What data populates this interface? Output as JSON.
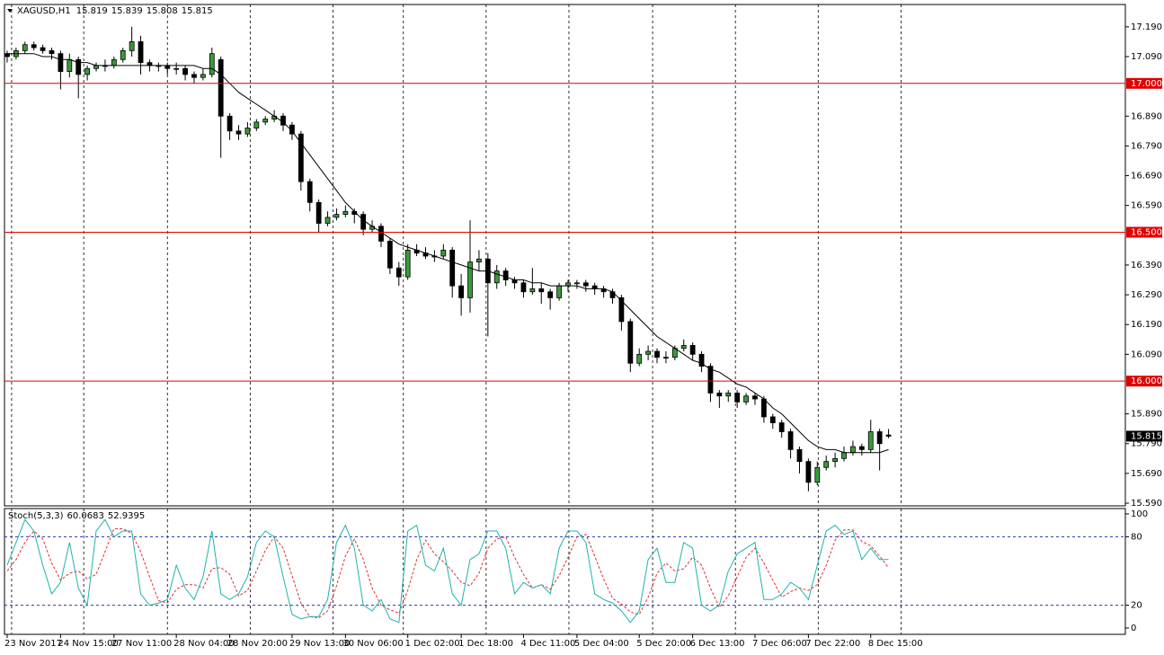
{
  "chart_data": {
    "type": "candlestick",
    "symbol": "XAGUSD,H1",
    "up_color": "#3a9a3a",
    "down_color": "#000000",
    "ma_color": "#000000",
    "level_color": "#e00000",
    "ylim": [
      15.581,
      17.265
    ],
    "yticks": [
      {
        "value": 17.19,
        "label": "17.190"
      },
      {
        "value": 17.09,
        "label": "17.090"
      },
      {
        "value": 16.89,
        "label": "16.890"
      },
      {
        "value": 16.79,
        "label": "16.790"
      },
      {
        "value": 16.69,
        "label": "16.690"
      },
      {
        "value": 16.59,
        "label": "16.590"
      },
      {
        "value": 16.39,
        "label": "16.390"
      },
      {
        "value": 16.29,
        "label": "16.290"
      },
      {
        "value": 16.19,
        "label": "16.190"
      },
      {
        "value": 16.09,
        "label": "16.090"
      },
      {
        "value": 15.89,
        "label": "15.890"
      },
      {
        "value": 15.79,
        "label": "15.790"
      },
      {
        "value": 15.69,
        "label": "15.690"
      },
      {
        "value": 15.59,
        "label": "15.590"
      }
    ],
    "levels": [
      {
        "value": 17,
        "label": "17.000"
      },
      {
        "value": 16.5,
        "label": "16.500"
      },
      {
        "value": 16,
        "label": "16.000"
      }
    ],
    "xlim": [
      -0.3,
      125.6
    ],
    "xticks": [
      {
        "value": 0,
        "label": "23 Nov 2017"
      },
      {
        "value": 6,
        "label": "24 Nov 15:00"
      },
      {
        "value": 12,
        "label": "27 Nov 11:00"
      },
      {
        "value": 19,
        "label": "28 Nov 04:00"
      },
      {
        "value": 25,
        "label": "28 Nov 20:00"
      },
      {
        "value": 32,
        "label": "29 Nov 13:00"
      },
      {
        "value": 38,
        "label": "30 Nov 06:00"
      },
      {
        "value": 45,
        "label": "1 Dec 02:00"
      },
      {
        "value": 51,
        "label": "1 Dec 18:00"
      },
      {
        "value": 58,
        "label": "4 Dec 11:00"
      },
      {
        "value": 64,
        "label": "5 Dec 04:00"
      },
      {
        "value": 71,
        "label": "5 Dec 20:00"
      },
      {
        "value": 77,
        "label": "6 Dec 13:00"
      },
      {
        "value": 84,
        "label": "7 Dec 06:00"
      },
      {
        "value": 90,
        "label": "7 Dec 22:00"
      },
      {
        "value": 97,
        "label": "8 Dec 15:00"
      }
    ],
    "grid_x": [
      0.5,
      8.6,
      18,
      27.3,
      36.6,
      44.5,
      53.8,
      63.1,
      72.5,
      81.8,
      91.1,
      100.4
    ],
    "ohlc": [
      [
        17.1,
        17.11,
        17.07,
        17.09
      ],
      [
        17.09,
        17.12,
        17.08,
        17.11
      ],
      [
        17.11,
        17.14,
        17.1,
        17.13
      ],
      [
        17.13,
        17.14,
        17.11,
        17.12
      ],
      [
        17.12,
        17.13,
        17.1,
        17.11
      ],
      [
        17.11,
        17.12,
        17.08,
        17.1
      ],
      [
        17.1,
        17.11,
        16.98,
        17.04
      ],
      [
        17.04,
        17.1,
        17.02,
        17.08
      ],
      [
        17.08,
        17.09,
        16.95,
        17.03
      ],
      [
        17.03,
        17.06,
        17.01,
        17.05
      ],
      [
        17.05,
        17.07,
        17.04,
        17.06
      ],
      [
        17.06,
        17.08,
        17.04,
        17.06
      ],
      [
        17.06,
        17.09,
        17.05,
        17.08
      ],
      [
        17.08,
        17.12,
        17.07,
        17.11
      ],
      [
        17.11,
        17.19,
        17.09,
        17.14
      ],
      [
        17.14,
        17.16,
        17.03,
        17.07
      ],
      [
        17.07,
        17.08,
        17.04,
        17.06
      ],
      [
        17.06,
        17.07,
        17.04,
        17.06
      ],
      [
        17.06,
        17.07,
        17.03,
        17.05
      ],
      [
        17.05,
        17.07,
        17.03,
        17.05
      ],
      [
        17.05,
        17.06,
        17.01,
        17.03
      ],
      [
        17.03,
        17.04,
        17.0,
        17.02
      ],
      [
        17.02,
        17.05,
        17.01,
        17.03
      ],
      [
        17.03,
        17.12,
        17.02,
        17.1
      ],
      [
        17.08,
        17.09,
        16.75,
        16.89
      ],
      [
        16.89,
        16.9,
        16.81,
        16.84
      ],
      [
        16.84,
        16.86,
        16.81,
        16.83
      ],
      [
        16.83,
        16.87,
        16.82,
        16.85
      ],
      [
        16.85,
        16.88,
        16.84,
        16.87
      ],
      [
        16.87,
        16.89,
        16.86,
        16.88
      ],
      [
        16.88,
        16.91,
        16.87,
        16.89
      ],
      [
        16.89,
        16.9,
        16.84,
        16.86
      ],
      [
        16.86,
        16.87,
        16.81,
        16.83
      ],
      [
        16.83,
        16.84,
        16.64,
        16.67
      ],
      [
        16.67,
        16.68,
        16.57,
        16.6
      ],
      [
        16.6,
        16.61,
        16.5,
        16.53
      ],
      [
        16.53,
        16.57,
        16.52,
        16.55
      ],
      [
        16.55,
        16.58,
        16.54,
        16.56
      ],
      [
        16.56,
        16.59,
        16.55,
        16.57
      ],
      [
        16.57,
        16.58,
        16.53,
        16.56
      ],
      [
        16.56,
        16.57,
        16.49,
        16.51
      ],
      [
        16.51,
        16.54,
        16.5,
        16.52
      ],
      [
        16.52,
        16.53,
        16.45,
        16.47
      ],
      [
        16.47,
        16.48,
        16.36,
        16.38
      ],
      [
        16.38,
        16.4,
        16.32,
        16.35
      ],
      [
        16.35,
        16.46,
        16.34,
        16.44
      ],
      [
        16.44,
        16.46,
        16.42,
        16.43
      ],
      [
        16.43,
        16.45,
        16.41,
        16.42
      ],
      [
        16.42,
        16.44,
        16.4,
        16.42
      ],
      [
        16.42,
        16.46,
        16.41,
        16.44
      ],
      [
        16.44,
        16.45,
        16.28,
        16.32
      ],
      [
        16.32,
        16.36,
        16.22,
        16.28
      ],
      [
        16.28,
        16.54,
        16.23,
        16.4
      ],
      [
        16.4,
        16.44,
        16.37,
        16.41
      ],
      [
        16.41,
        16.43,
        16.15,
        16.33
      ],
      [
        16.33,
        16.39,
        16.31,
        16.37
      ],
      [
        16.37,
        16.38,
        16.32,
        16.34
      ],
      [
        16.34,
        16.35,
        16.31,
        16.33
      ],
      [
        16.33,
        16.34,
        16.28,
        16.3
      ],
      [
        16.3,
        16.38,
        16.29,
        16.31
      ],
      [
        16.31,
        16.33,
        16.26,
        16.3
      ],
      [
        16.3,
        16.31,
        16.24,
        16.28
      ],
      [
        16.28,
        16.33,
        16.27,
        16.32
      ],
      [
        16.32,
        16.34,
        16.3,
        16.33
      ],
      [
        16.33,
        16.34,
        16.31,
        16.33
      ],
      [
        16.33,
        16.34,
        16.3,
        16.32
      ],
      [
        16.32,
        16.33,
        16.29,
        16.31
      ],
      [
        16.31,
        16.32,
        16.28,
        16.3
      ],
      [
        16.3,
        16.31,
        16.26,
        16.28
      ],
      [
        16.28,
        16.29,
        16.17,
        16.2
      ],
      [
        16.2,
        16.21,
        16.03,
        16.06
      ],
      [
        16.06,
        16.11,
        16.05,
        16.09
      ],
      [
        16.09,
        16.12,
        16.07,
        16.1
      ],
      [
        16.1,
        16.11,
        16.06,
        16.08
      ],
      [
        16.08,
        16.1,
        16.06,
        16.08
      ],
      [
        16.08,
        16.12,
        16.07,
        16.11
      ],
      [
        16.11,
        16.14,
        16.1,
        16.12
      ],
      [
        16.12,
        16.13,
        16.07,
        16.09
      ],
      [
        16.09,
        16.1,
        16.03,
        16.05
      ],
      [
        16.05,
        16.06,
        15.93,
        15.96
      ],
      [
        15.96,
        15.97,
        15.91,
        15.95
      ],
      [
        15.95,
        15.97,
        15.93,
        15.96
      ],
      [
        15.96,
        15.97,
        15.91,
        15.93
      ],
      [
        15.93,
        15.96,
        15.92,
        15.95
      ],
      [
        15.95,
        15.96,
        15.92,
        15.94
      ],
      [
        15.94,
        15.95,
        15.86,
        15.88
      ],
      [
        15.88,
        15.89,
        15.84,
        15.86
      ],
      [
        15.86,
        15.87,
        15.81,
        15.83
      ],
      [
        15.83,
        15.84,
        15.74,
        15.77
      ],
      [
        15.77,
        15.78,
        15.69,
        15.73
      ],
      [
        15.73,
        15.74,
        15.63,
        15.66
      ],
      [
        15.66,
        15.73,
        15.65,
        15.71
      ],
      [
        15.71,
        15.75,
        15.7,
        15.73
      ],
      [
        15.73,
        15.76,
        15.71,
        15.74
      ],
      [
        15.74,
        15.78,
        15.73,
        15.76
      ],
      [
        15.76,
        15.8,
        15.75,
        15.78
      ],
      [
        15.78,
        15.79,
        15.75,
        15.77
      ],
      [
        15.77,
        15.87,
        15.76,
        15.83
      ],
      [
        15.83,
        15.84,
        15.7,
        15.79
      ],
      [
        15.819,
        15.839,
        15.808,
        15.815
      ]
    ],
    "ma": {
      "values": [
        17.1,
        17.1,
        17.1,
        17.1,
        17.09,
        17.09,
        17.08,
        17.08,
        17.07,
        17.07,
        17.06,
        17.06,
        17.06,
        17.06,
        17.06,
        17.06,
        17.06,
        17.06,
        17.06,
        17.06,
        17.06,
        17.06,
        17.05,
        17.05,
        17.03,
        17.0,
        16.97,
        16.95,
        16.93,
        16.91,
        16.89,
        16.87,
        16.84,
        16.8,
        16.76,
        16.72,
        16.68,
        16.64,
        16.6,
        16.57,
        16.54,
        16.52,
        16.5,
        16.48,
        16.46,
        16.45,
        16.44,
        16.43,
        16.42,
        16.41,
        16.4,
        16.39,
        16.38,
        16.37,
        16.37,
        16.36,
        16.35,
        16.34,
        16.34,
        16.33,
        16.33,
        16.32,
        16.32,
        16.32,
        16.32,
        16.31,
        16.31,
        16.31,
        16.3,
        16.27,
        16.24,
        16.21,
        16.18,
        16.15,
        16.13,
        16.11,
        16.09,
        16.07,
        16.06,
        16.04,
        16.03,
        16.01,
        15.99,
        15.98,
        15.96,
        15.94,
        15.91,
        15.89,
        15.86,
        15.83,
        15.8,
        15.78,
        15.77,
        15.77,
        15.76,
        15.76,
        15.76,
        15.76,
        15.76,
        15.77
      ]
    },
    "stoch": {
      "name": "Stoch(5,3,3)",
      "ylim": [
        -5.5,
        104.7
      ],
      "yticks": [
        100,
        80,
        20,
        0
      ],
      "levels": [
        80,
        20
      ],
      "level_color": "#2030c0",
      "main": {
        "color": "#20b2aa",
        "values": [
          55,
          75,
          95,
          85,
          55,
          30,
          40,
          75,
          35,
          20,
          85,
          95,
          80,
          85,
          85,
          30,
          20,
          22,
          25,
          55,
          35,
          25,
          45,
          85,
          30,
          25,
          30,
          45,
          75,
          85,
          80,
          45,
          12,
          8,
          10,
          10,
          25,
          75,
          90,
          70,
          20,
          15,
          25,
          8,
          5,
          85,
          90,
          55,
          50,
          70,
          30,
          20,
          60,
          65,
          85,
          85,
          70,
          30,
          40,
          35,
          38,
          30,
          70,
          85,
          85,
          75,
          30,
          25,
          22,
          15,
          5,
          15,
          60,
          70,
          40,
          40,
          75,
          70,
          20,
          15,
          20,
          50,
          65,
          70,
          75,
          25,
          25,
          30,
          40,
          35,
          25,
          55,
          85,
          90,
          82,
          85,
          60,
          70,
          60,
          60.0683
        ]
      },
      "signal": {
        "color": "#e03030",
        "values": [
          50,
          60,
          75,
          85,
          78,
          57,
          42,
          48,
          50,
          43,
          47,
          67,
          87,
          87,
          83,
          67,
          45,
          24,
          22,
          34,
          38,
          38,
          35,
          52,
          53,
          47,
          28,
          33,
          50,
          68,
          80,
          70,
          46,
          22,
          10,
          9,
          15,
          37,
          63,
          78,
          60,
          35,
          20,
          16,
          13,
          33,
          60,
          77,
          65,
          58,
          50,
          40,
          37,
          48,
          70,
          78,
          80,
          62,
          47,
          35,
          38,
          34,
          46,
          62,
          80,
          82,
          63,
          43,
          26,
          21,
          14,
          12,
          27,
          48,
          57,
          50,
          52,
          62,
          55,
          35,
          18,
          28,
          45,
          62,
          70,
          57,
          42,
          27,
          32,
          35,
          33,
          38,
          55,
          77,
          86,
          86,
          76,
          72,
          63,
          52.9395
        ]
      }
    }
  }
}
